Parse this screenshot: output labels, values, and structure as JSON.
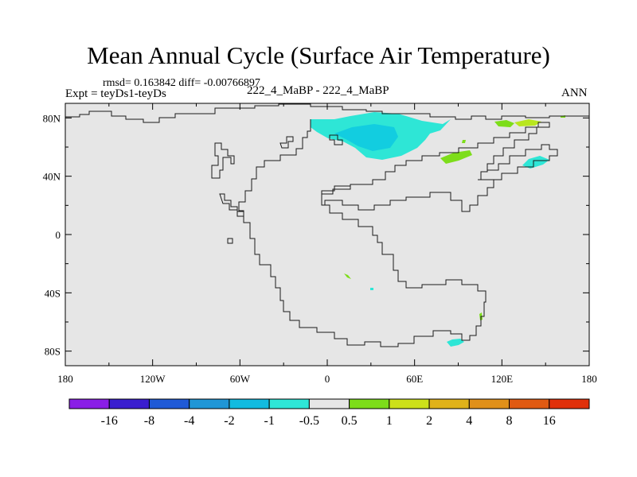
{
  "title": "Mean Annual Cycle (Surface Air Temperature)",
  "stats_line": "rmsd= 0.163842 diff= -0.00766897",
  "expt_line": "Expt = teyDs1-teyDs",
  "center_label": "222_4_MaBP - 222_4_MaBP",
  "season": "ANN",
  "colors": {
    "ocean": "#e6e6e6",
    "coast": "#1a1a1a",
    "anomaly_cyan": "#2ee6d6",
    "anomaly_teal": "#12cde0",
    "anomaly_green": "#7ddd1a",
    "anomaly_lime": "#b8e61e"
  },
  "x_ticks": [
    "180",
    "120W",
    "60W",
    "0",
    "60E",
    "120E",
    "180"
  ],
  "y_ticks": [
    "80N",
    "40N",
    "0",
    "40S",
    "80S"
  ],
  "colorbar": {
    "colors": [
      "#8a1ee6",
      "#3a1ecf",
      "#1f5ad6",
      "#1f96d6",
      "#12bbe0",
      "#2ee6d6",
      "#e6e6e6",
      "#7ddd1a",
      "#cde01a",
      "#e0b21a",
      "#e0901a",
      "#e05a12",
      "#e0300a"
    ],
    "labels": [
      "-16",
      "-8",
      "-4",
      "-2",
      "-1",
      "-0.5",
      "0.5",
      "1",
      "2",
      "4",
      "8",
      "16"
    ]
  }
}
